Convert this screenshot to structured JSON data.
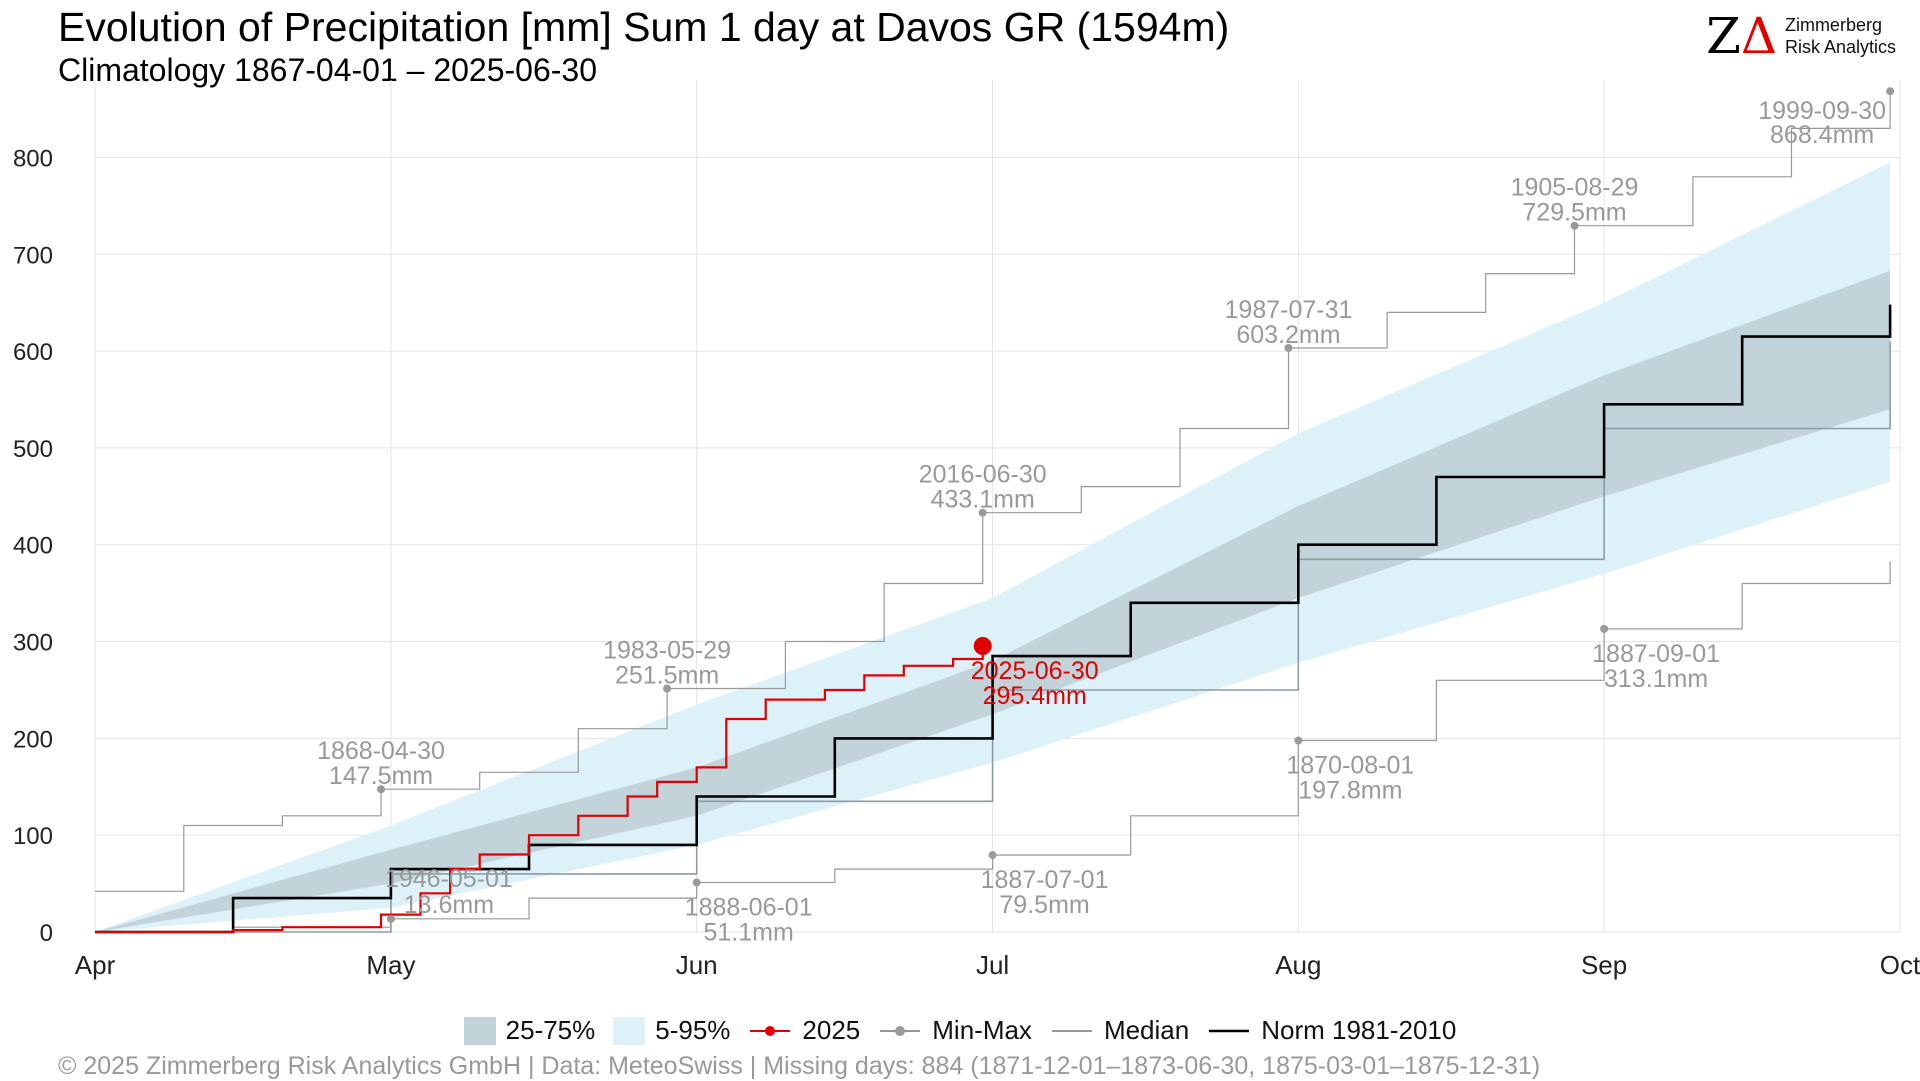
{
  "header": {
    "title": "Evolution of Precipitation [mm] Sum 1 day at Davos  GR (1594m)",
    "subtitle": "Climatology 1867-04-01 – 2025-06-30"
  },
  "logo": {
    "mark": "Z",
    "mark_delta": "Δ",
    "line1": "Zimmerberg",
    "line2": "Risk Analytics"
  },
  "legend": [
    {
      "label": "25-75%",
      "kind": "band",
      "color": "#c2d4da"
    },
    {
      "label": "5-95%",
      "kind": "band",
      "color": "#ddf1f8"
    },
    {
      "label": "2025",
      "kind": "line-dot",
      "color": "#e00000"
    },
    {
      "label": "Min-Max",
      "kind": "line-dot",
      "color": "#999999"
    },
    {
      "label": "Median",
      "kind": "line",
      "color": "#8c9ca6"
    },
    {
      "label": "Norm 1981-2010",
      "kind": "line",
      "color": "#000000"
    }
  ],
  "footer": "©  2025 Zimmerberg Risk Analytics GmbH | Data: MeteoSwiss | Missing days: 884 (1871-12-01–1873-06-30, 1875-03-01–1875-12-31)",
  "chart_data": {
    "type": "line",
    "x_unit": "date",
    "xlim": [
      "2025-04-01",
      "2025-10-01"
    ],
    "ylim": [
      0,
      880
    ],
    "x_ticks": [
      {
        "label": "Apr",
        "date": "2025-04-01"
      },
      {
        "label": "May",
        "date": "2025-05-01"
      },
      {
        "label": "Jun",
        "date": "2025-06-01"
      },
      {
        "label": "Jul",
        "date": "2025-07-01"
      },
      {
        "label": "Aug",
        "date": "2025-08-01"
      },
      {
        "label": "Sep",
        "date": "2025-09-01"
      },
      {
        "label": "Oct",
        "date": "2025-10-01"
      }
    ],
    "y_ticks": [
      0,
      100,
      200,
      300,
      400,
      500,
      600,
      700,
      800
    ],
    "grid": true,
    "legend_position": "bottom",
    "bands": {
      "p5_95": {
        "x": [
          "2025-04-01",
          "2025-05-01",
          "2025-06-01",
          "2025-07-01",
          "2025-08-01",
          "2025-09-01",
          "2025-09-30"
        ],
        "lower": [
          0,
          25,
          90,
          175,
          278,
          370,
          465
        ],
        "upper": [
          0,
          110,
          235,
          345,
          515,
          650,
          795
        ]
      },
      "p25_75": {
        "x": [
          "2025-04-01",
          "2025-05-01",
          "2025-06-01",
          "2025-07-01",
          "2025-08-01",
          "2025-09-01",
          "2025-09-30"
        ],
        "lower": [
          0,
          50,
          120,
          225,
          345,
          450,
          540
        ],
        "upper": [
          0,
          85,
          170,
          280,
          440,
          575,
          683
        ]
      }
    },
    "series": [
      {
        "name": "Norm 1981-2010",
        "color": "#000000",
        "x": [
          "2025-04-01",
          "2025-04-15",
          "2025-05-01",
          "2025-05-15",
          "2025-06-01",
          "2025-06-15",
          "2025-07-01",
          "2025-07-15",
          "2025-08-01",
          "2025-08-15",
          "2025-09-01",
          "2025-09-15",
          "2025-09-30"
        ],
        "y": [
          0,
          35,
          65,
          90,
          140,
          200,
          285,
          340,
          400,
          470,
          545,
          615,
          648
        ]
      },
      {
        "name": "Median",
        "color": "#8c9ca6",
        "x": [
          "2025-04-01",
          "2025-05-01",
          "2025-06-01",
          "2025-07-01",
          "2025-08-01",
          "2025-09-01",
          "2025-09-30"
        ],
        "y": [
          0,
          60,
          135,
          250,
          385,
          520,
          610
        ]
      },
      {
        "name": "2025",
        "color": "#e00000",
        "x": [
          "2025-04-01",
          "2025-04-15",
          "2025-04-20",
          "2025-04-30",
          "2025-05-04",
          "2025-05-07",
          "2025-05-10",
          "2025-05-15",
          "2025-05-20",
          "2025-05-25",
          "2025-05-28",
          "2025-06-01",
          "2025-06-04",
          "2025-06-08",
          "2025-06-14",
          "2025-06-18",
          "2025-06-22",
          "2025-06-27",
          "2025-06-30"
        ],
        "y": [
          0,
          2,
          5,
          18,
          40,
          65,
          80,
          100,
          120,
          140,
          155,
          170,
          220,
          240,
          250,
          265,
          275,
          282,
          295.4
        ]
      },
      {
        "name": "Min-Max",
        "role": "max",
        "color": "#999999",
        "x": [
          "2025-04-01",
          "2025-04-10",
          "2025-04-20",
          "2025-04-30",
          "2025-05-10",
          "2025-05-20",
          "2025-05-29",
          "2025-06-10",
          "2025-06-20",
          "2025-06-30",
          "2025-07-10",
          "2025-07-20",
          "2025-07-31",
          "2025-08-10",
          "2025-08-20",
          "2025-08-29",
          "2025-09-10",
          "2025-09-20",
          "2025-09-30"
        ],
        "y": [
          42,
          110,
          120,
          147.5,
          165,
          210,
          251.5,
          300,
          360,
          433.1,
          460,
          520,
          603.2,
          640,
          680,
          729.5,
          780,
          830,
          868.4
        ]
      },
      {
        "name": "Min-Max",
        "role": "min",
        "color": "#999999",
        "x": [
          "2025-04-01",
          "2025-04-15",
          "2025-05-01",
          "2025-05-15",
          "2025-06-01",
          "2025-06-15",
          "2025-07-01",
          "2025-07-15",
          "2025-08-01",
          "2025-08-15",
          "2025-09-01",
          "2025-09-15",
          "2025-09-30"
        ],
        "y": [
          0,
          5,
          13.6,
          35,
          51.1,
          65,
          79.5,
          120,
          197.8,
          260,
          313.1,
          360,
          383
        ]
      }
    ],
    "annotations": [
      {
        "date_label": "2025-06-30",
        "value_label": "295.4mm",
        "x": "2025-06-30",
        "y": 295.4,
        "color": "#e00000",
        "marker": "big"
      },
      {
        "date_label": "1999-09-30",
        "value_label": "868.4mm",
        "x": "2025-09-30",
        "y": 868.4,
        "color": "#999999"
      },
      {
        "date_label": "1905-08-29",
        "value_label": "729.5mm",
        "x": "2025-08-29",
        "y": 729.5,
        "color": "#999999"
      },
      {
        "date_label": "1987-07-31",
        "value_label": "603.2mm",
        "x": "2025-07-31",
        "y": 603.2,
        "color": "#999999"
      },
      {
        "date_label": "2016-06-30",
        "value_label": "433.1mm",
        "x": "2025-06-30",
        "y": 433.1,
        "color": "#999999"
      },
      {
        "date_label": "1983-05-29",
        "value_label": "251.5mm",
        "x": "2025-05-29",
        "y": 251.5,
        "color": "#999999"
      },
      {
        "date_label": "1868-04-30",
        "value_label": "147.5mm",
        "x": "2025-04-30",
        "y": 147.5,
        "color": "#999999"
      },
      {
        "date_label": "1946-05-01",
        "value_label": "13.6mm",
        "x": "2025-05-01",
        "y": 13.6,
        "color": "#999999"
      },
      {
        "date_label": "1888-06-01",
        "value_label": "51.1mm",
        "x": "2025-06-01",
        "y": 51.1,
        "color": "#999999"
      },
      {
        "date_label": "1887-07-01",
        "value_label": "79.5mm",
        "x": "2025-07-01",
        "y": 79.5,
        "color": "#999999"
      },
      {
        "date_label": "1870-08-01",
        "value_label": "197.8mm",
        "x": "2025-08-01",
        "y": 197.8,
        "color": "#999999"
      },
      {
        "date_label": "1887-09-01",
        "value_label": "313.1mm",
        "x": "2025-09-01",
        "y": 313.1,
        "color": "#999999"
      }
    ]
  }
}
